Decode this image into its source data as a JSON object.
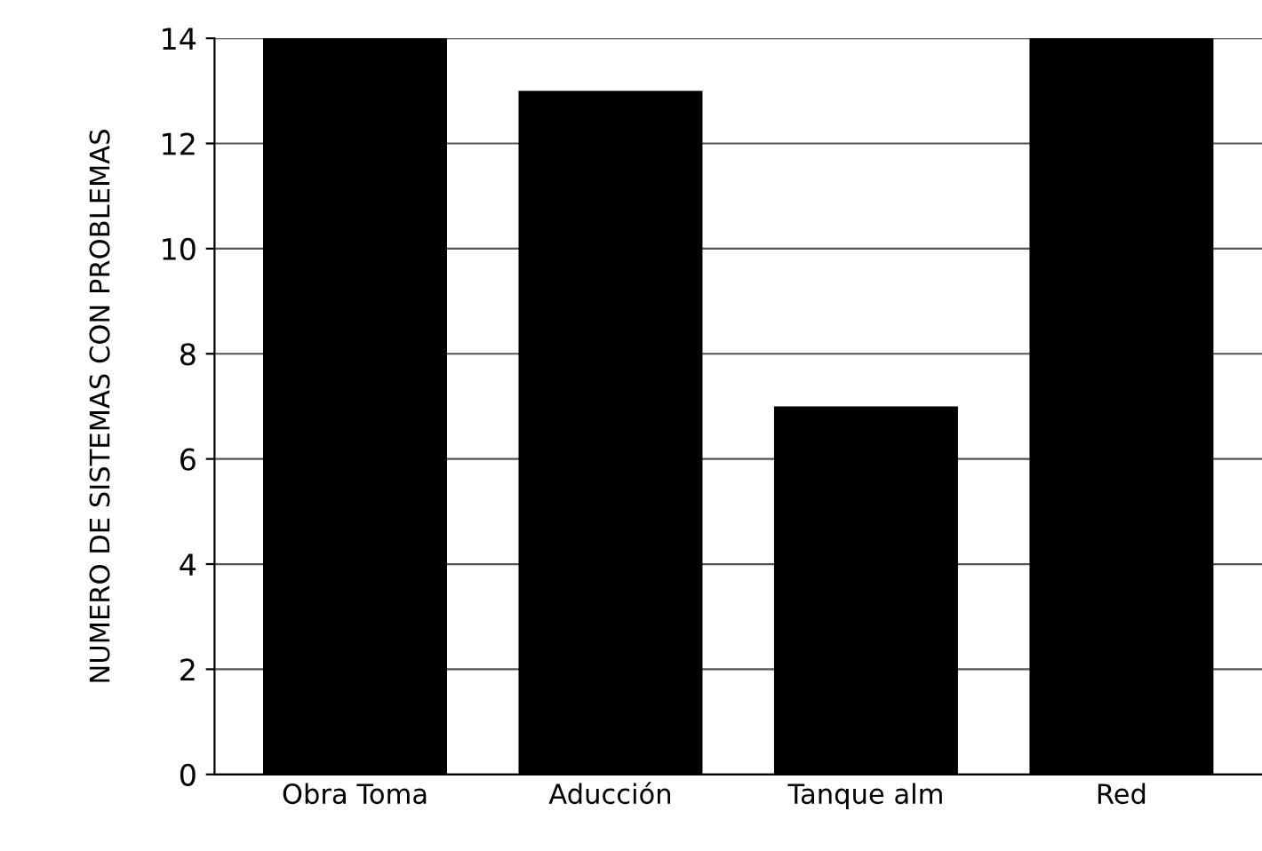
{
  "chart_data": {
    "type": "bar",
    "ylabel": "NUMERO DE SISTEMAS CON PROBLEMAS",
    "categories": [
      "Obra Toma",
      "Aducción",
      "Tanque alm",
      "Red"
    ],
    "values": [
      14,
      13,
      7,
      14
    ],
    "color": "#000000",
    "ylim": [
      0,
      14
    ],
    "yticks": [
      0,
      2,
      4,
      6,
      8,
      10,
      12,
      14
    ],
    "grid": "y"
  }
}
